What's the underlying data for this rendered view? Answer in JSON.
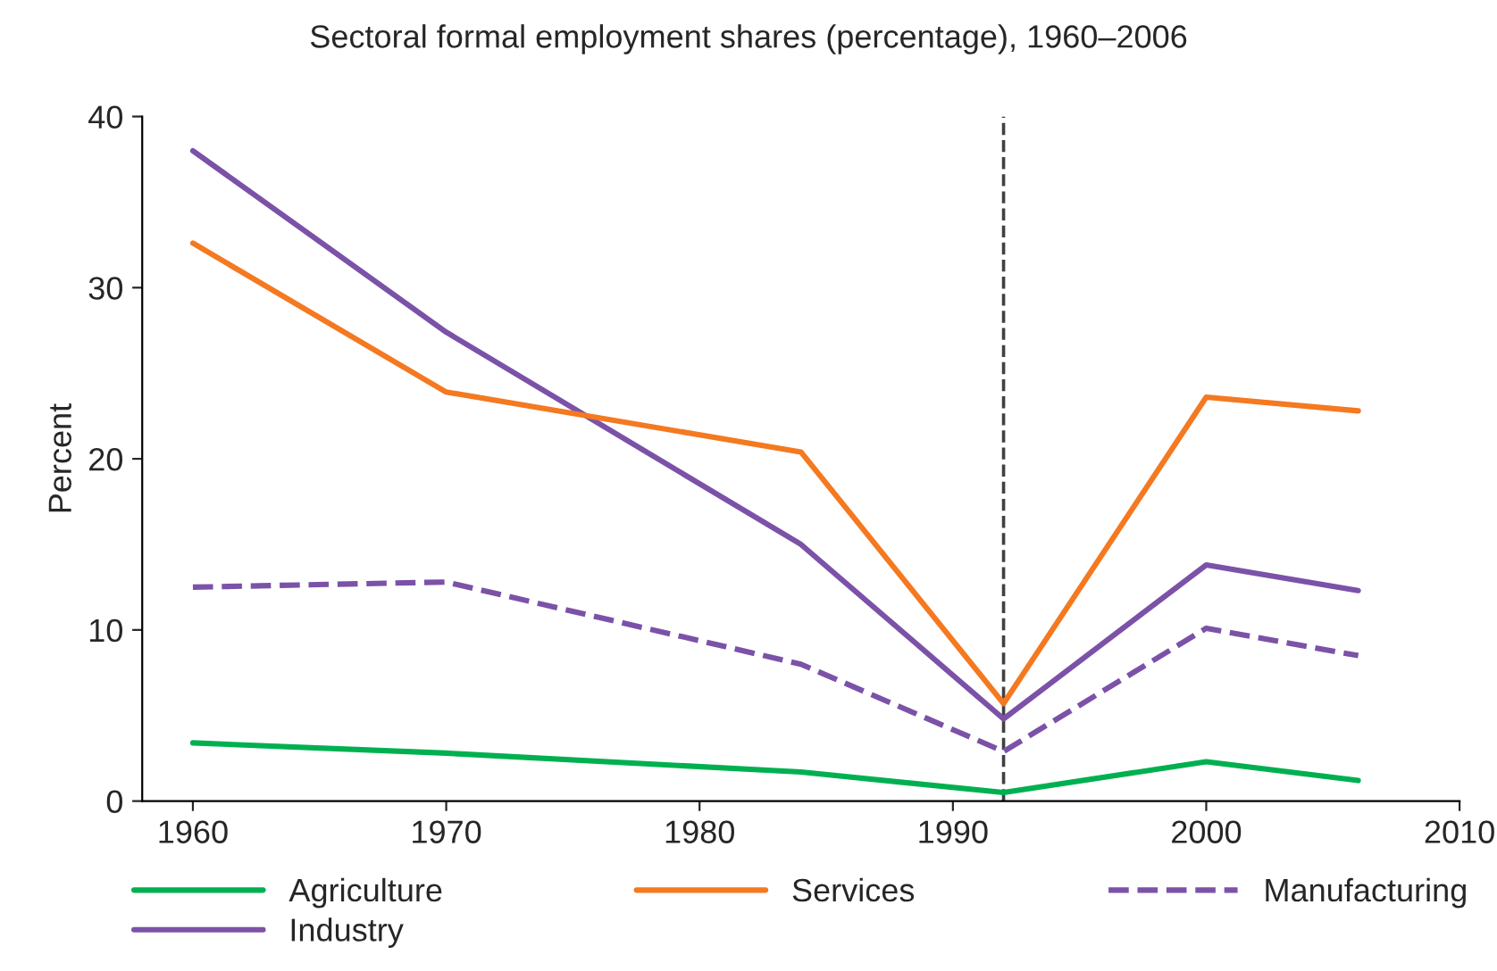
{
  "chart_data": {
    "type": "line",
    "title": "Sectoral formal employment shares (percentage), 1960–2006",
    "ylabel": "Percent",
    "xlim": [
      1958,
      2010
    ],
    "xticks": [
      1960,
      1970,
      1980,
      1990,
      2000,
      2010
    ],
    "ylim": [
      0,
      40
    ],
    "yticks": [
      0,
      10,
      20,
      30,
      40
    ],
    "x": [
      1960,
      1970,
      1984,
      1992,
      2000,
      2006
    ],
    "series": [
      {
        "name": "Agriculture",
        "color": "#00b050",
        "values": [
          3.4,
          2.8,
          1.7,
          0.5,
          2.3,
          1.2
        ],
        "line_style": "solid"
      },
      {
        "name": "Industry",
        "color": "#7b52a8",
        "values": [
          38.0,
          27.4,
          15.0,
          4.8,
          13.8,
          12.3
        ],
        "line_style": "solid"
      },
      {
        "name": "Services",
        "color": "#f47920",
        "values": [
          32.6,
          23.9,
          20.4,
          5.7,
          23.6,
          22.8
        ],
        "line_style": "solid"
      },
      {
        "name": "Manufacturing",
        "color": "#7b52a8",
        "values": [
          12.5,
          12.8,
          8.0,
          2.9,
          10.1,
          8.5
        ],
        "line_style": "dashed"
      }
    ],
    "ref_lines": [
      {
        "axis": "x",
        "value": 1992,
        "color": "#404040",
        "line_style": "dashed"
      }
    ],
    "grid": false,
    "legend": "bottom",
    "marker": "none"
  }
}
